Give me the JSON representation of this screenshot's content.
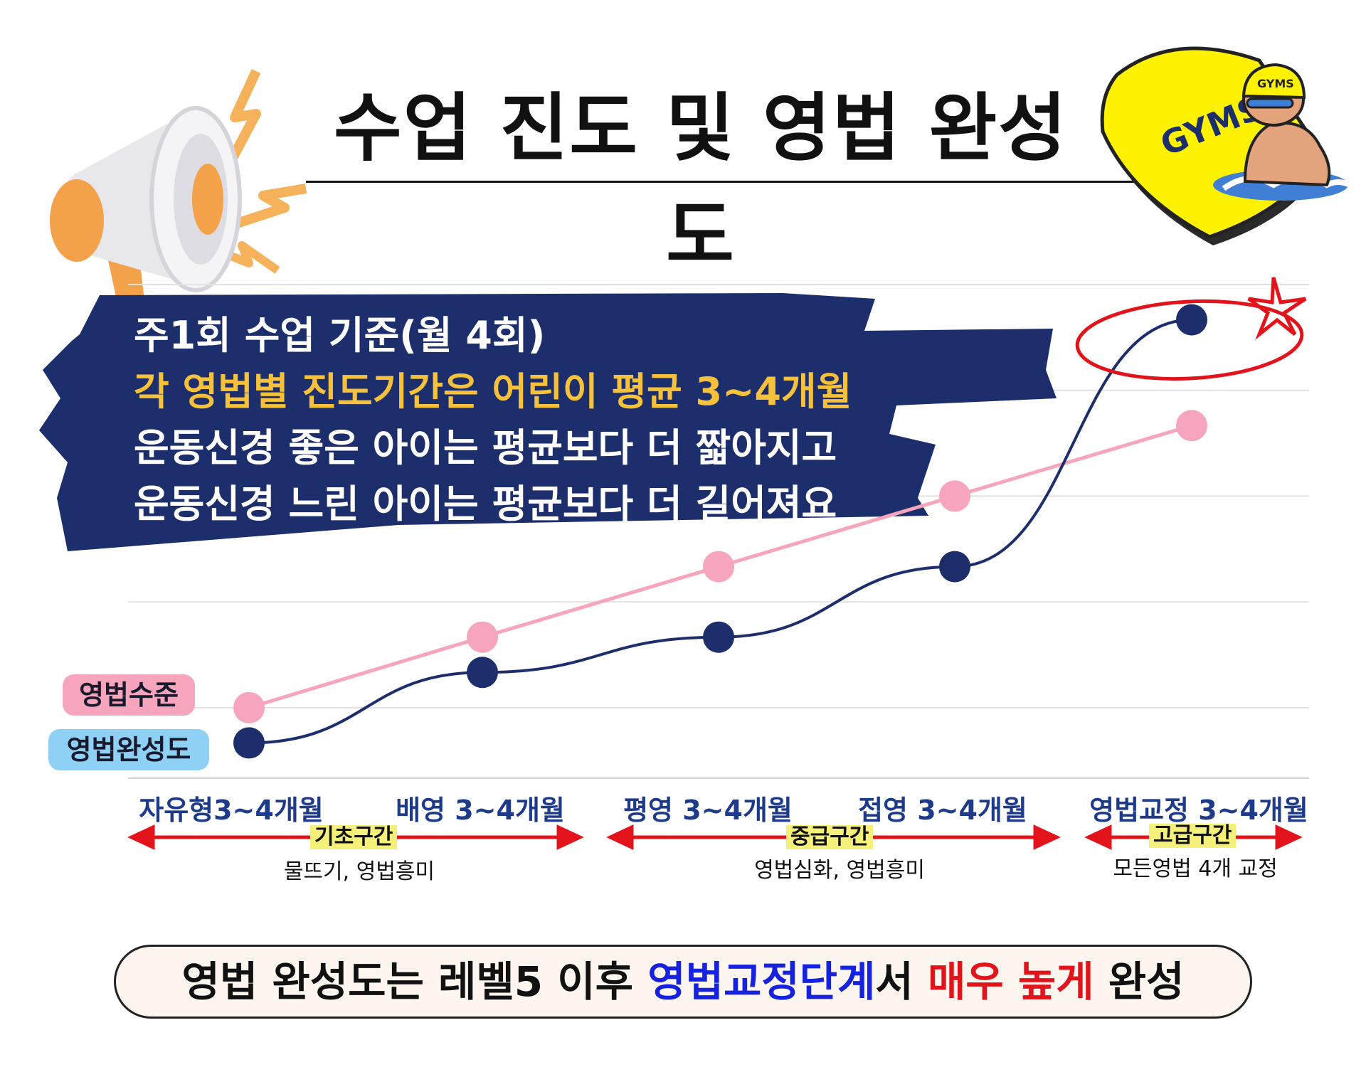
{
  "title": "수업 진도 및 영법 완성도",
  "banner": {
    "line1": "주1회 수업 기준(월 4회)",
    "line2": "각 영법별 진도기간은 어린이 평균 3~4개월",
    "line3": "운동신경 좋은 아이는 평균보다 더 짧아지고",
    "line4": "운동신경 느린 아이는 평균보다 더 길어져요"
  },
  "logo": {
    "text": "GYMS",
    "cap_text": "GYMS"
  },
  "legend": {
    "pink": "영법수준",
    "blue": "영법완성도"
  },
  "zones": [
    {
      "name": "기초구간",
      "desc": "물뜨기, 영법흥미"
    },
    {
      "name": "중급구간",
      "desc": "영법심화, 영법흥미"
    },
    {
      "name": "고급구간",
      "desc": "모든영법 4개 교정"
    }
  ],
  "bottom": {
    "part1": "영법 완성도는 레벨5 이후 ",
    "part2": "영법교정단계",
    "part3": "서 ",
    "part4": "매우 높게",
    "part5": " 완성"
  },
  "colors": {
    "navy": "#1c2e6b",
    "pink": "#f6a5bc",
    "legend_pink": "#f6a5bc",
    "legend_blue": "#8fd0f5",
    "arrow_red": "#e3131b",
    "gold": "#f7c23a",
    "logo_yellow": "#fff200"
  },
  "chart_data": {
    "type": "line",
    "categories": [
      "자유형3~4개월",
      "배영 3~4개월",
      "평영 3~4개월",
      "접영 3~4개월",
      "영법교정 3~4개월"
    ],
    "series": [
      {
        "name": "영법수준",
        "values": [
          1.5,
          2.5,
          3.5,
          4.5,
          5.5
        ]
      },
      {
        "name": "영법완성도",
        "values": [
          1,
          2,
          2.5,
          3.5,
          7
        ]
      }
    ],
    "ylim": [
      0.5,
      7.5
    ],
    "grid": true,
    "highlight": "last point of 영법완성도 circled in red with star"
  }
}
